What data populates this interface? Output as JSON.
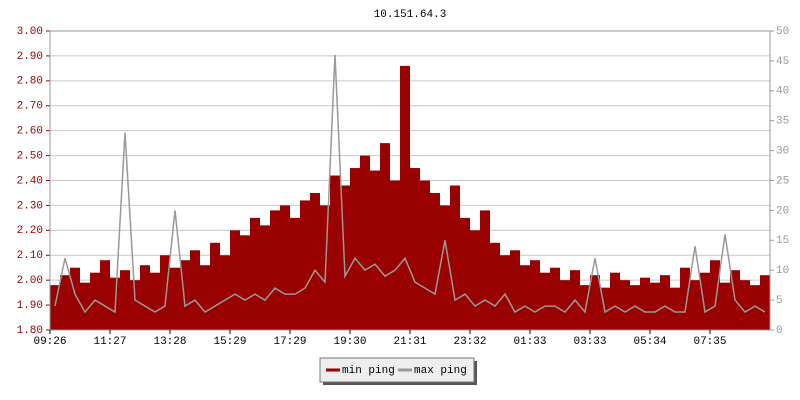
{
  "chart_data": {
    "type": "bar-line",
    "title": "10.151.64.3",
    "categories": [
      "09:26",
      null,
      null,
      null,
      null,
      null,
      "11:27",
      null,
      null,
      null,
      null,
      null,
      "13:28",
      null,
      null,
      null,
      null,
      null,
      "15:29",
      null,
      null,
      null,
      null,
      null,
      "17:29",
      null,
      null,
      null,
      null,
      null,
      "19:30",
      null,
      null,
      null,
      null,
      null,
      "21:31",
      null,
      null,
      null,
      null,
      null,
      "23:32",
      null,
      null,
      null,
      null,
      null,
      "01:33",
      null,
      null,
      null,
      null,
      null,
      "03:33",
      null,
      null,
      null,
      null,
      null,
      "05:34",
      null,
      null,
      null,
      null,
      null,
      "07:35",
      null,
      null,
      null,
      null,
      null
    ],
    "series": [
      {
        "name": "min ping",
        "color": "#990000",
        "axis": "y",
        "values": [
          1.98,
          2.02,
          2.05,
          1.99,
          2.03,
          2.08,
          2.01,
          2.04,
          2.0,
          2.06,
          2.03,
          2.1,
          2.05,
          2.08,
          2.12,
          2.06,
          2.15,
          2.1,
          2.2,
          2.18,
          2.25,
          2.22,
          2.28,
          2.3,
          2.25,
          2.32,
          2.35,
          2.3,
          2.42,
          2.38,
          2.45,
          2.5,
          2.44,
          2.55,
          2.4,
          2.86,
          2.45,
          2.4,
          2.35,
          2.3,
          2.38,
          2.25,
          2.2,
          2.28,
          2.15,
          2.1,
          2.12,
          2.06,
          2.08,
          2.03,
          2.05,
          2.0,
          2.04,
          1.98,
          2.02,
          1.97,
          2.03,
          2.0,
          1.98,
          2.01,
          1.99,
          2.02,
          1.97,
          2.05,
          2.0,
          2.03,
          2.08,
          1.99,
          2.04,
          2.0,
          1.98,
          2.02
        ]
      },
      {
        "name": "max ping",
        "color": "#999999",
        "axis": "y2",
        "values": [
          4,
          12,
          6,
          3,
          5,
          4,
          3,
          33,
          5,
          4,
          3,
          4,
          20,
          4,
          5,
          3,
          4,
          5,
          6,
          5,
          6,
          5,
          7,
          6,
          6,
          7,
          10,
          8,
          46,
          9,
          12,
          10,
          11,
          9,
          10,
          12,
          8,
          7,
          6,
          15,
          5,
          6,
          4,
          5,
          4,
          6,
          3,
          4,
          3,
          4,
          4,
          3,
          5,
          3,
          12,
          3,
          4,
          3,
          4,
          3,
          3,
          4,
          3,
          3,
          14,
          3,
          4,
          16,
          5,
          3,
          4,
          3
        ]
      }
    ],
    "ylim": [
      1.8,
      3.0
    ],
    "yticks": [
      {
        "value": 1.8,
        "label": "1.80"
      },
      {
        "value": 1.9,
        "label": "1.90"
      },
      {
        "value": 2.0,
        "label": "2.00"
      },
      {
        "value": 2.1,
        "label": "2.10"
      },
      {
        "value": 2.2,
        "label": "2.20"
      },
      {
        "value": 2.3,
        "label": "2.30"
      },
      {
        "value": 2.4,
        "label": "2.40"
      },
      {
        "value": 2.5,
        "label": "2.50"
      },
      {
        "value": 2.6,
        "label": "2.60"
      },
      {
        "value": 2.7,
        "label": "2.70"
      },
      {
        "value": 2.8,
        "label": "2.80"
      },
      {
        "value": 2.9,
        "label": "2.90"
      },
      {
        "value": 3.0,
        "label": "3.00"
      }
    ],
    "y2lim": [
      0,
      50
    ],
    "y2ticks": [
      0,
      5,
      10,
      15,
      20,
      25,
      30,
      35,
      40,
      45,
      50
    ],
    "grid": true
  }
}
